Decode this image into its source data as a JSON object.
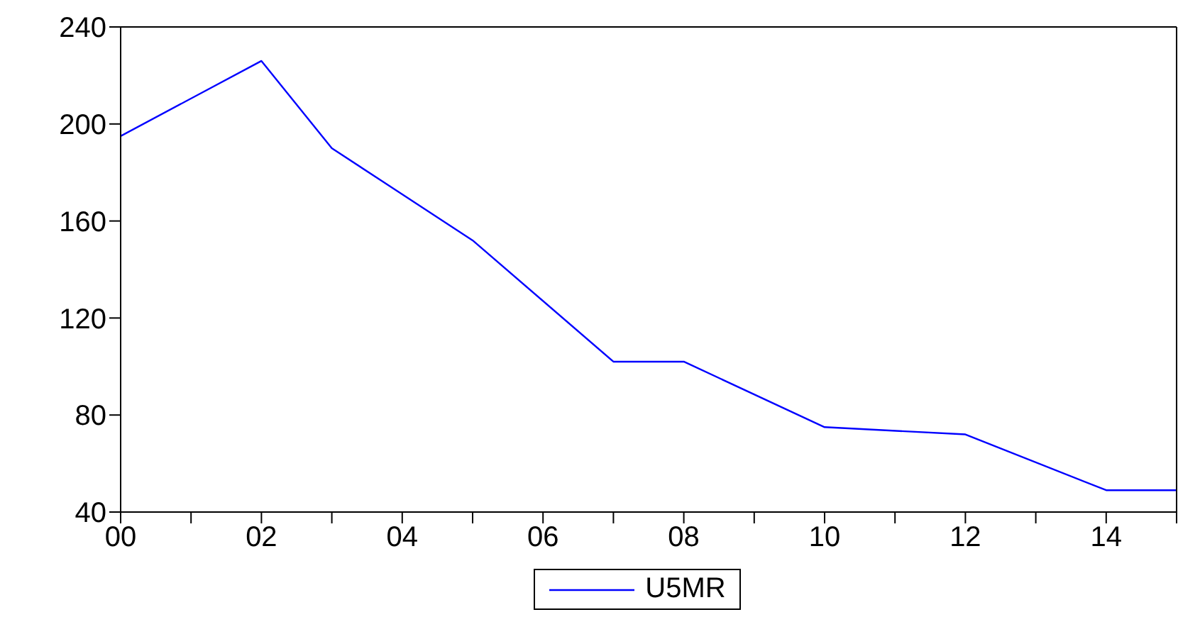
{
  "chart_data": {
    "type": "line",
    "x": [
      0,
      2,
      3,
      5,
      7,
      8,
      10,
      12,
      14,
      15
    ],
    "series": [
      {
        "name": "U5MR",
        "color": "#0000ff",
        "values": [
          195,
          226,
          190,
          152,
          102,
          102,
          75,
          72,
          49,
          49
        ]
      }
    ],
    "xlim": [
      0,
      15
    ],
    "xticks": [
      {
        "value": 0,
        "label": "00"
      },
      {
        "value": 1,
        "label": null
      },
      {
        "value": 2,
        "label": "02"
      },
      {
        "value": 3,
        "label": null
      },
      {
        "value": 4,
        "label": "04"
      },
      {
        "value": 5,
        "label": null
      },
      {
        "value": 6,
        "label": "06"
      },
      {
        "value": 7,
        "label": null
      },
      {
        "value": 8,
        "label": "08"
      },
      {
        "value": 9,
        "label": null
      },
      {
        "value": 10,
        "label": "10"
      },
      {
        "value": 11,
        "label": null
      },
      {
        "value": 12,
        "label": "12"
      },
      {
        "value": 13,
        "label": null
      },
      {
        "value": 14,
        "label": "14"
      },
      {
        "value": 15,
        "label": null
      }
    ],
    "ylim": [
      40,
      240
    ],
    "yticks": [
      40,
      80,
      120,
      160,
      200,
      240
    ],
    "legend": "bottom",
    "grid": false,
    "marker": "none",
    "line_style": "solid"
  }
}
